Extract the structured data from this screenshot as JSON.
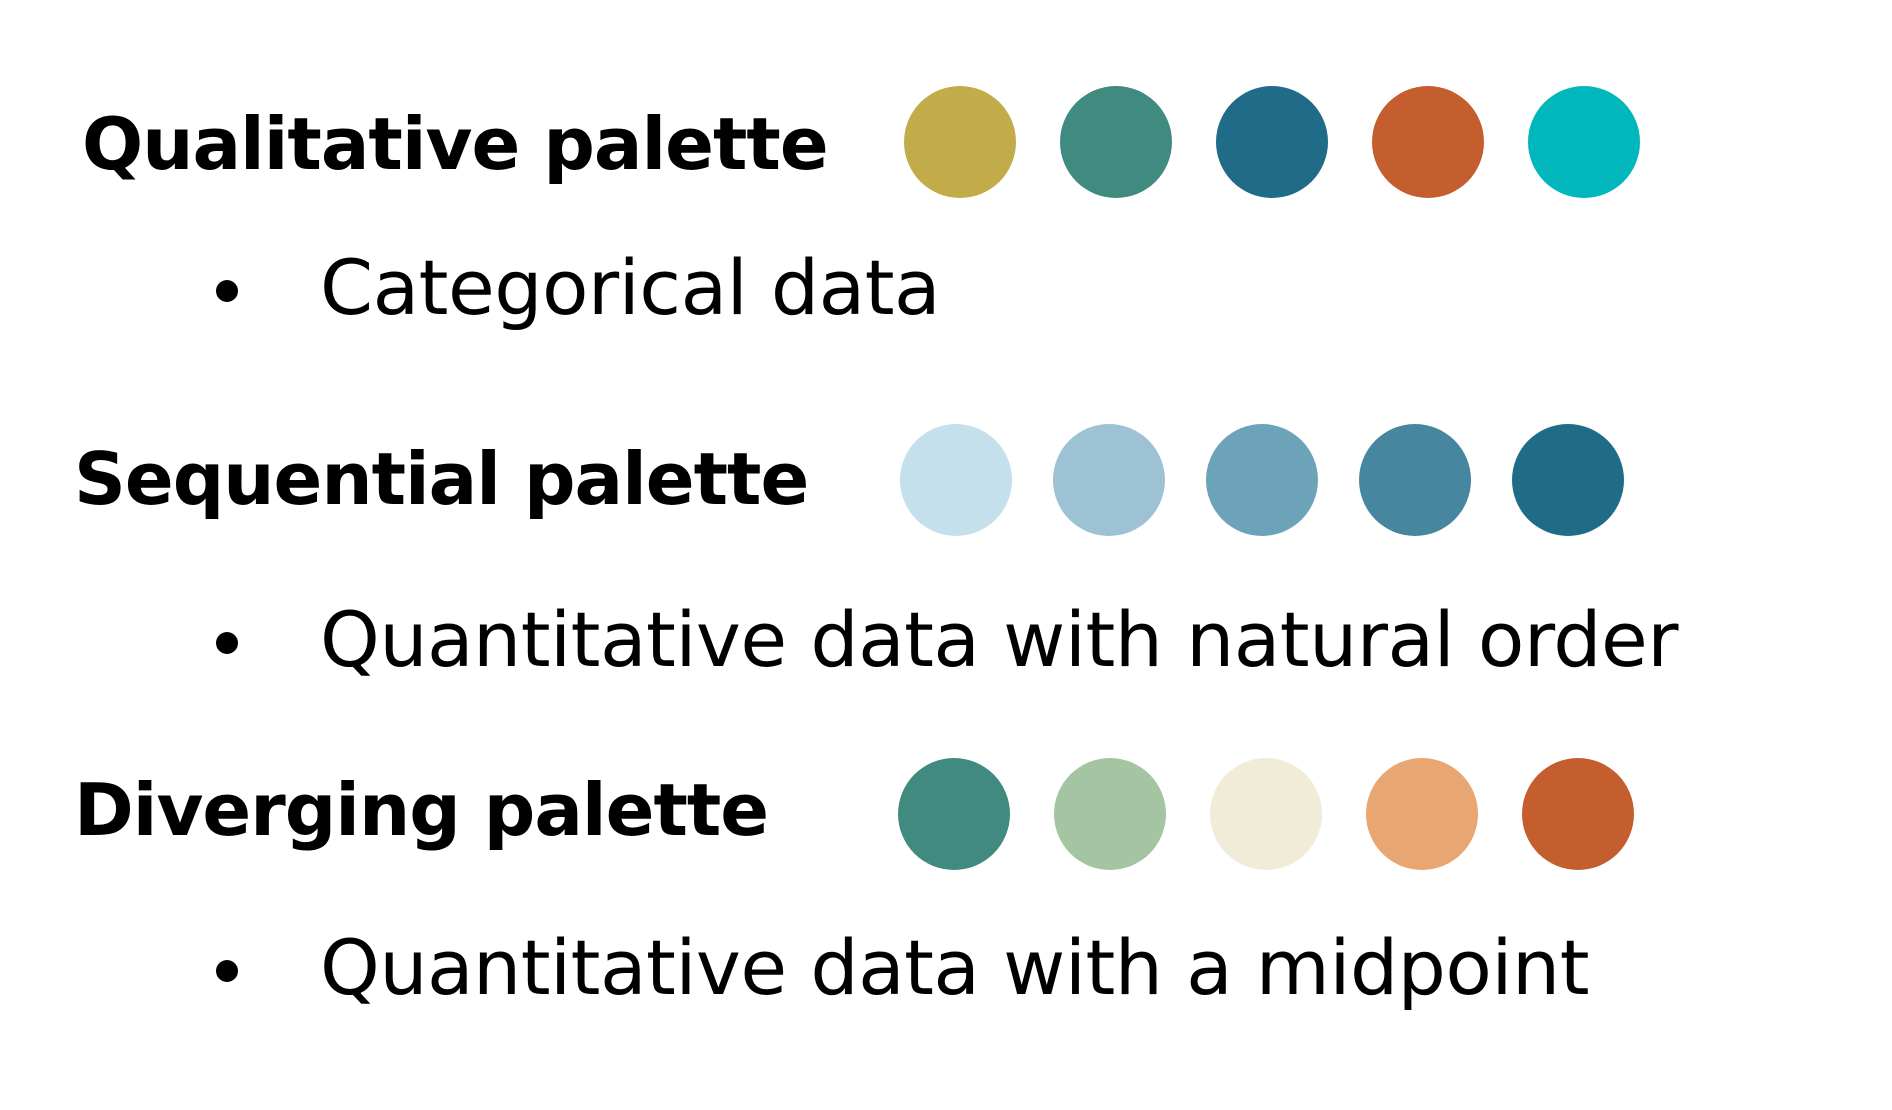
{
  "palettes": [
    {
      "title": "Qualitative palette",
      "bullet": "Categorical data",
      "colors": [
        "#c2ac4a",
        "#408a80",
        "#1f6b88",
        "#c45e2e",
        "#00b8bc"
      ]
    },
    {
      "title": "Sequential palette",
      "bullet": "Quantitative data with natural order",
      "colors": [
        "#c3e0ec",
        "#9cc2d4",
        "#6da3b9",
        "#46869e",
        "#1f6b88"
      ]
    },
    {
      "title": "Diverging palette",
      "bullet": "Quantitative data with a midpoint",
      "colors": [
        "#408a80",
        "#a4c4a2",
        "#f1ecd8",
        "#e8a672",
        "#c45e2e"
      ]
    }
  ]
}
